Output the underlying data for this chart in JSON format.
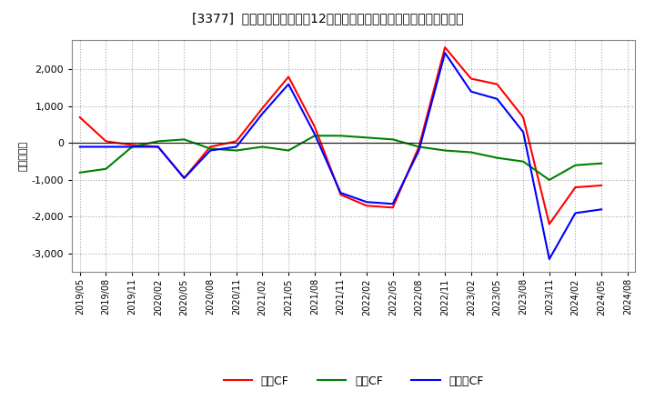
{
  "title": "[3377]  キャッシュフローの12か月移動合計の対前年同期増減額の推移",
  "ylabel": "（百万円）",
  "x_labels": [
    "2019/05",
    "2019/08",
    "2019/11",
    "2020/02",
    "2020/05",
    "2020/08",
    "2020/11",
    "2021/02",
    "2021/05",
    "2021/08",
    "2021/11",
    "2022/02",
    "2022/05",
    "2022/08",
    "2022/11",
    "2023/02",
    "2023/05",
    "2023/08",
    "2023/11",
    "2024/02",
    "2024/05",
    "2024/08"
  ],
  "operating_cf": [
    700,
    50,
    -50,
    -100,
    -950,
    -100,
    50,
    950,
    1800,
    450,
    -1400,
    -1700,
    -1750,
    -100,
    2600,
    1750,
    1600,
    700,
    -2200,
    -1200,
    -1150,
    null
  ],
  "investing_cf": [
    -800,
    -700,
    -100,
    50,
    100,
    -150,
    -200,
    -100,
    -200,
    200,
    200,
    150,
    100,
    -100,
    -200,
    -250,
    -400,
    -500,
    -1000,
    -600,
    -550,
    null
  ],
  "free_cf": [
    -100,
    -100,
    -100,
    -100,
    -950,
    -200,
    -100,
    800,
    1600,
    250,
    -1350,
    -1600,
    -1650,
    -200,
    2450,
    1400,
    1200,
    300,
    -3150,
    -1900,
    -1800,
    null
  ],
  "colors": {
    "operating": "#ff0000",
    "investing": "#008000",
    "free": "#0000ff"
  },
  "ylim": [
    -3500,
    2800
  ],
  "yticks": [
    -3000,
    -2000,
    -1000,
    0,
    1000,
    2000
  ],
  "background_color": "#ffffff",
  "plot_bg_color": "#ffffff",
  "grid_color": "#aaaaaa",
  "legend_labels": [
    "営業CF",
    "投資CF",
    "フリーCF"
  ]
}
